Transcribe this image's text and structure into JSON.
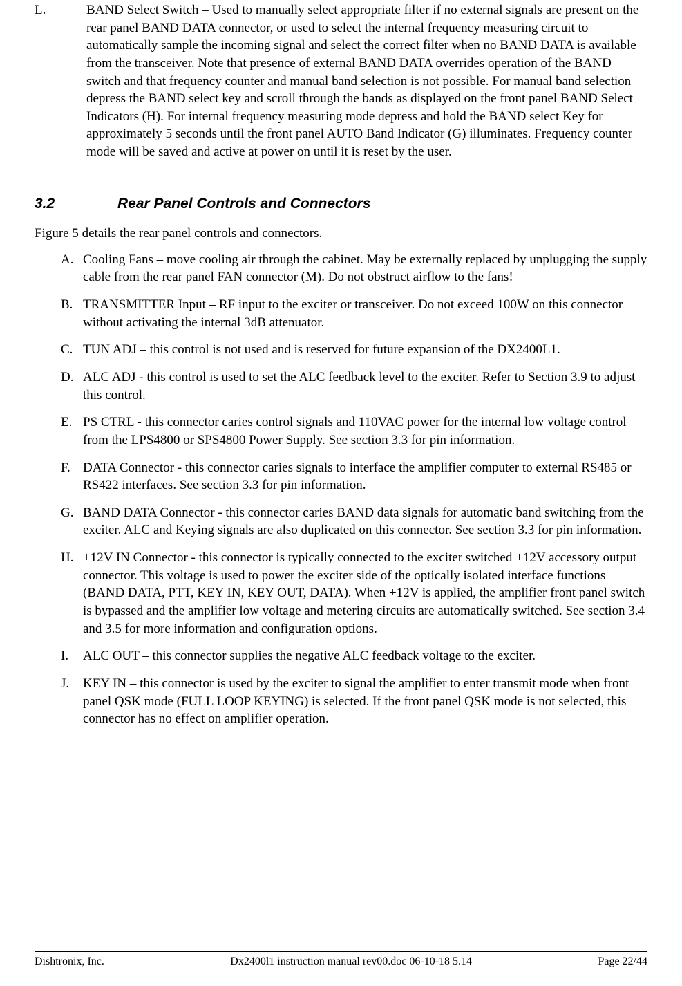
{
  "itemL": {
    "marker": "L.",
    "text": "BAND Select Switch – Used to manually select appropriate filter if no external signals are present on the rear panel BAND DATA connector, or used to select the internal frequency measuring circuit to automatically sample the incoming signal and select the correct filter when no BAND DATA is available from the transceiver. Note that presence of external BAND DATA overrides operation of the BAND switch and that frequency counter and manual band selection is not possible. For manual band selection depress the BAND select key and scroll through the bands as displayed on the front panel BAND Select Indicators (H). For internal frequency measuring mode depress and hold the BAND select Key for approximately 5 seconds until the front panel AUTO Band Indicator (G) illuminates. Frequency counter mode will be saved and active at power on until it is reset by the user."
  },
  "section": {
    "number": "3.2",
    "title": "Rear Panel Controls and Connectors"
  },
  "intro": "Figure 5 details the rear panel controls and connectors.",
  "items": [
    {
      "marker": "A.",
      "text": "Cooling Fans – move cooling air through the cabinet. May be externally replaced by unplugging the supply cable from the rear panel FAN connector (M). Do not obstruct airflow to the fans!"
    },
    {
      "marker": "B.",
      "text": "TRANSMITTER Input – RF input to the exciter or transceiver. Do not exceed 100W on this connector without activating the internal 3dB attenuator."
    },
    {
      "marker": "C.",
      "text": "TUN ADJ – this control is not used and is reserved for future expansion of the DX2400L1."
    },
    {
      "marker": "D.",
      "text": "ALC ADJ -  this control is used to set the ALC feedback level to the exciter. Refer to Section 3.9 to adjust this control."
    },
    {
      "marker": "E.",
      "text": "PS CTRL -  this connector caries control signals and 110VAC power for the internal low voltage control from the LPS4800 or SPS4800 Power Supply. See section 3.3 for pin information."
    },
    {
      "marker": "F.",
      "text": "DATA Connector -  this connector caries signals to interface the amplifier computer to external RS485 or RS422 interfaces. See section 3.3 for pin information."
    },
    {
      "marker": "G.",
      "text": "BAND DATA Connector -  this connector caries BAND data signals for automatic band switching from the exciter. ALC and Keying signals are also duplicated on this connector. See section 3.3 for pin information."
    },
    {
      "marker": "H.",
      "text": "+12V IN Connector -  this connector is typically connected to the exciter  switched +12V accessory output connector. This voltage is used to power the exciter side of the optically isolated interface functions (BAND DATA, PTT, KEY IN, KEY OUT, DATA). When +12V is applied, the amplifier front panel switch is bypassed and the amplifier low voltage and metering circuits are automatically switched. See section 3.4 and 3.5 for more information and configuration options."
    },
    {
      "marker": "I.",
      "text": "ALC OUT – this connector supplies the negative ALC feedback voltage to the exciter."
    },
    {
      "marker": "J.",
      "text": "KEY IN – this connector is used by the exciter to signal the amplifier to enter transmit mode when front panel QSK mode (FULL LOOP KEYING) is selected. If the front panel QSK mode is not selected, this connector has no effect on amplifier operation."
    }
  ],
  "footer": {
    "left": "Dishtronix, Inc.",
    "center": "Dx2400l1 instruction manual rev00.doc 06-10-18 5.14",
    "right": "Page 22/44"
  }
}
